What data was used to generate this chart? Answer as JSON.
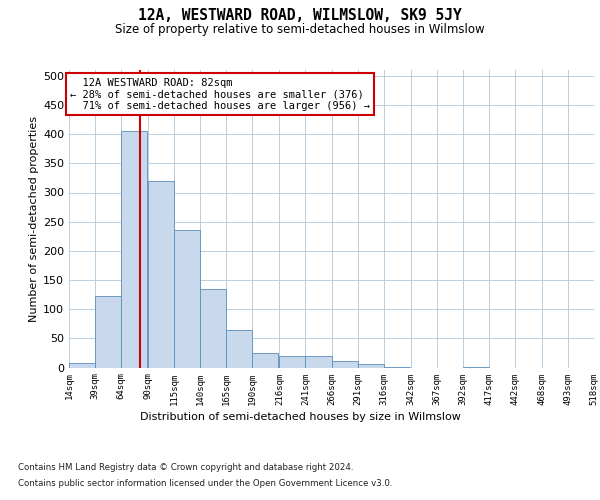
{
  "title_line1": "12A, WESTWARD ROAD, WILMSLOW, SK9 5JY",
  "title_line2": "Size of property relative to semi-detached houses in Wilmslow",
  "xlabel": "Distribution of semi-detached houses by size in Wilmslow",
  "ylabel": "Number of semi-detached properties",
  "bar_color": "#c9d9ed",
  "bar_edge_color": "#5b8db8",
  "grid_color": "#b8cfe0",
  "bg_color": "#ffffff",
  "annotation_box_color": "#cc0000",
  "property_line_color": "#cc0000",
  "property_value": 82,
  "property_label": "12A WESTWARD ROAD: 82sqm",
  "pct_smaller": 28,
  "count_smaller": 376,
  "pct_larger": 71,
  "count_larger": 956,
  "bin_edges": [
    14,
    39,
    64,
    90,
    115,
    140,
    165,
    190,
    216,
    241,
    266,
    291,
    316,
    342,
    367,
    392,
    417,
    442,
    468,
    493,
    518
  ],
  "bar_heights": [
    7,
    123,
    405,
    320,
    236,
    135,
    64,
    25,
    20,
    20,
    12,
    6,
    1,
    0,
    0,
    1,
    0,
    0,
    0,
    0
  ],
  "ylim": [
    0,
    510
  ],
  "yticks": [
    0,
    50,
    100,
    150,
    200,
    250,
    300,
    350,
    400,
    450,
    500
  ],
  "footnote_line1": "Contains HM Land Registry data © Crown copyright and database right 2024.",
  "footnote_line2": "Contains public sector information licensed under the Open Government Licence v3.0."
}
